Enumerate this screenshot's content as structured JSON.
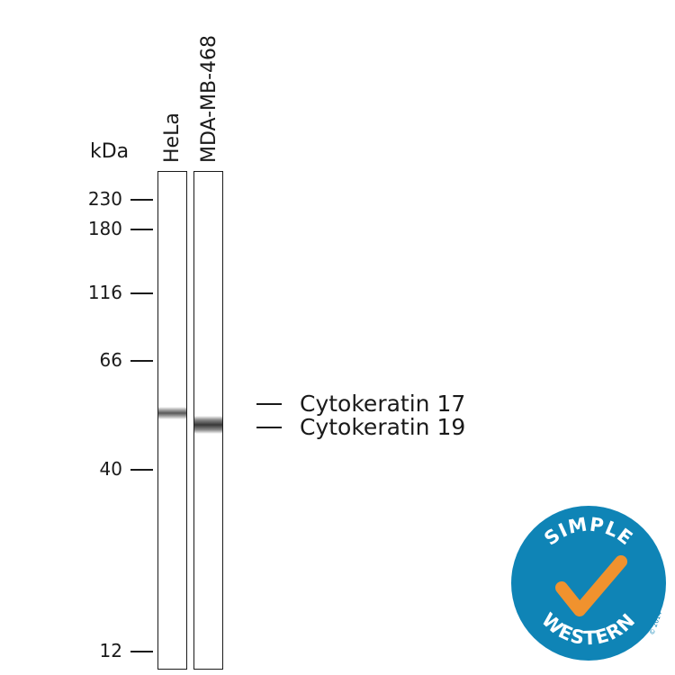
{
  "axis": {
    "unit_label": "kDa",
    "markers": [
      "230",
      "180",
      "116",
      "66",
      "40",
      "12"
    ]
  },
  "lanes": [
    "HeLa",
    "MDA-MB-468"
  ],
  "bands": [
    "Cytokeratin 17",
    "Cytokeratin 19"
  ],
  "logo": {
    "top_text": "SIMPLE",
    "bottom_text": "WESTERN",
    "copyright": "© 2014",
    "colors": {
      "circle": "#0f84b6",
      "check": "#f0922e",
      "text": "#ffffff"
    }
  }
}
